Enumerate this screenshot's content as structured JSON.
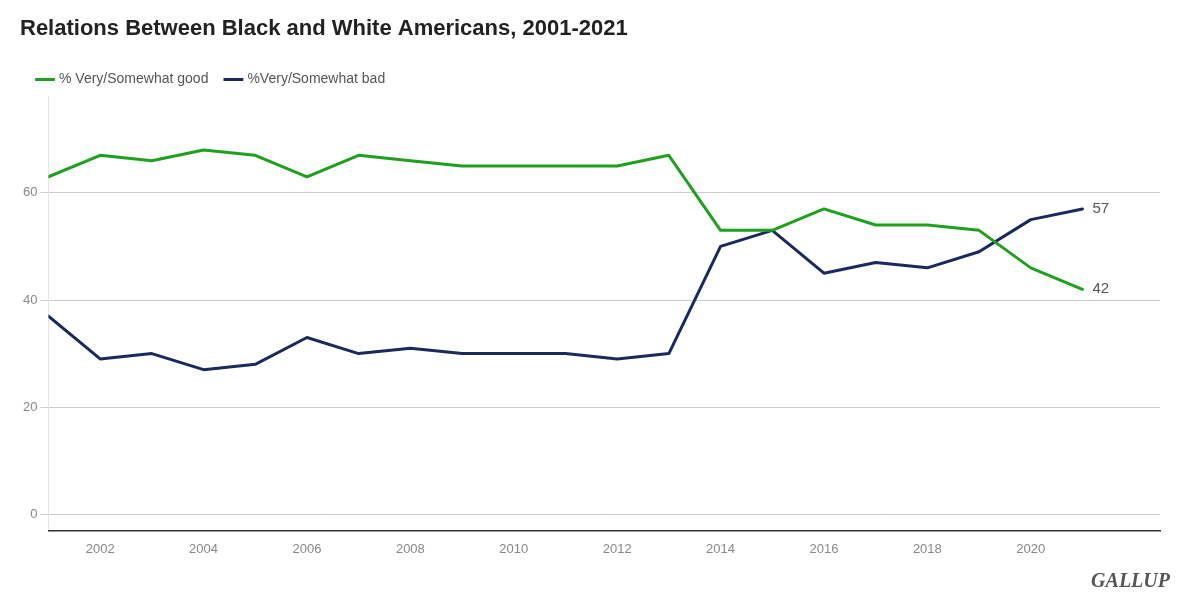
{
  "chart_data": {
    "type": "line",
    "title": "Relations Between Black and White Americans, 2001-2021",
    "x": [
      2001,
      2002,
      2003,
      2004,
      2005,
      2006,
      2007,
      2008,
      2009,
      2010,
      2011,
      2012,
      2013,
      2014,
      2015,
      2016,
      2017,
      2018,
      2019,
      2020,
      2021
    ],
    "series": [
      {
        "name": "% Very/Somewhat good",
        "color": "#1fa01f",
        "values": [
          63,
          67,
          66,
          68,
          67,
          63,
          67,
          66,
          65,
          65,
          65,
          65,
          67,
          53,
          53,
          57,
          54,
          54,
          53,
          46,
          42
        ]
      },
      {
        "name": "%Very/Somewhat bad",
        "color": "#1b2a5e",
        "values": [
          37,
          29,
          30,
          27,
          28,
          33,
          30,
          31,
          30,
          30,
          30,
          29,
          30,
          50,
          53,
          45,
          47,
          46,
          49,
          55,
          57
        ]
      }
    ],
    "xlim": [
      2001,
      2022.5
    ],
    "ylim": [
      -3,
      78
    ],
    "xticks": [
      2002,
      2004,
      2006,
      2008,
      2010,
      2012,
      2014,
      2016,
      2018,
      2020
    ],
    "yticks": [
      0,
      20,
      40,
      60
    ],
    "grid": "y",
    "legend": "upper left",
    "annotations": [
      {
        "text": "57",
        "x": 2021,
        "y": 57
      },
      {
        "text": "42",
        "x": 2021,
        "y": 42
      },
      {
        "text": "GALLUP"
      }
    ]
  }
}
